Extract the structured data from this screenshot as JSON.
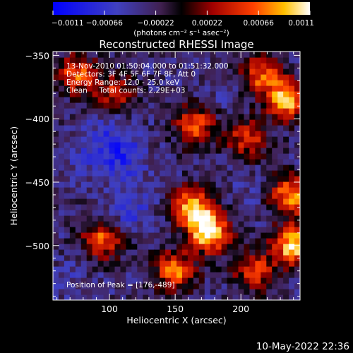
{
  "chart_data": {
    "type": "heatmap",
    "title": "Reconstructed RHESSI Image",
    "xlabel": "Heliocentric X (arcsec)",
    "ylabel": "Heliocentric Y (arcsec)",
    "xlim": [
      57,
      245
    ],
    "ylim": [
      -543,
      -347
    ],
    "x_ticks": [
      100,
      150,
      200
    ],
    "y_ticks": [
      -350,
      -400,
      -450,
      -500
    ],
    "colorbar": {
      "min": -0.0011,
      "max": 0.0011,
      "tick_values": [
        -0.0011,
        -0.00066,
        -0.00022,
        0.00022,
        0.00066,
        0.0011
      ],
      "tick_labels": [
        "-0.0011",
        "-0.00066",
        "-0.00022",
        "0.00022",
        "0.00066",
        "0.0011"
      ],
      "label": "(photons cm⁻² s⁻¹ asec⁻²)"
    },
    "annotations": [
      "13-Nov-2010 01:50:04.000 to 01:51:32.000",
      "Detectors: 3F 4F 5F 6F 7F 8F, Att 0",
      "Energy Range: 12.0 - 25.0 keV",
      "Clean     Total counts: 2.29E+03"
    ],
    "peak_label": "Position of Peak = [176,-489]",
    "bright_sources": [
      {
        "x": 176,
        "y": -489,
        "value": 0.0011
      },
      {
        "x": 163,
        "y": -470,
        "value": 0.0009
      },
      {
        "x": 240,
        "y": -500,
        "value": 0.001
      },
      {
        "x": 235,
        "y": -385,
        "value": 0.0009
      },
      {
        "x": 238,
        "y": -460,
        "value": 0.0008
      },
      {
        "x": 95,
        "y": -495,
        "value": 0.0006
      },
      {
        "x": 150,
        "y": -520,
        "value": 0.0007
      },
      {
        "x": 165,
        "y": -405,
        "value": 0.0006
      },
      {
        "x": 75,
        "y": -365,
        "value": 0.0006
      },
      {
        "x": 105,
        "y": -380,
        "value": 0.0004
      },
      {
        "x": 205,
        "y": -415,
        "value": 0.0005
      },
      {
        "x": 215,
        "y": -365,
        "value": 0.0006
      },
      {
        "x": 210,
        "y": -520,
        "value": 0.0005
      }
    ],
    "dark_regions": [
      {
        "x": 110,
        "y": -430,
        "value": -0.0008
      },
      {
        "x": 80,
        "y": -430,
        "value": -0.0005
      },
      {
        "x": 115,
        "y": -470,
        "value": -0.0007
      },
      {
        "x": 100,
        "y": -410,
        "value": -0.0006
      },
      {
        "x": 205,
        "y": -460,
        "value": -0.0004
      },
      {
        "x": 190,
        "y": -385,
        "value": -0.0004
      },
      {
        "x": 70,
        "y": -525,
        "value": -0.0004
      }
    ],
    "background_value": -0.0003
  },
  "footer": {
    "date": "10-May-2022 22:36"
  }
}
